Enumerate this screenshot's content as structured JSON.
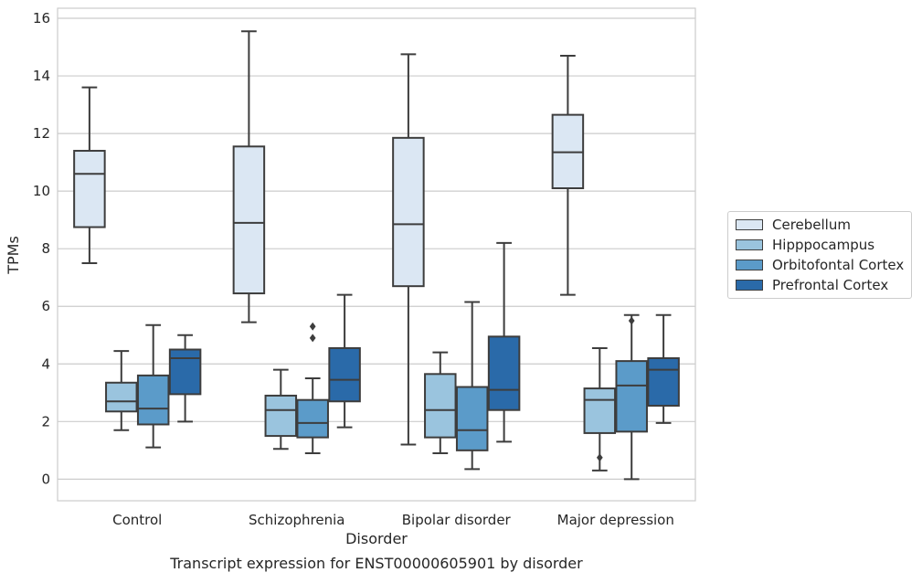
{
  "chart_data": {
    "type": "box",
    "xlabel": "Disorder",
    "ylabel": "TPMs",
    "caption": "Transcript expression for ENST00000605901 by disorder",
    "ylim": [
      -0.75,
      16.35
    ],
    "yticks": [
      0,
      2,
      4,
      6,
      8,
      10,
      12,
      14,
      16
    ],
    "grid": "horizontal",
    "legend_position": "outside-right",
    "categories": [
      "Control",
      "Schizophrenia",
      "Bipolar disorder",
      "Major depression"
    ],
    "series": [
      {
        "name": "Cerebellum",
        "color": "#dbe7f3",
        "boxes": [
          {
            "whislo": 7.5,
            "q1": 8.75,
            "med": 10.6,
            "q3": 11.4,
            "whishi": 13.6,
            "fliers": []
          },
          {
            "whislo": 5.45,
            "q1": 6.45,
            "med": 8.9,
            "q3": 11.55,
            "whishi": 15.55,
            "fliers": []
          },
          {
            "whislo": 1.2,
            "q1": 6.7,
            "med": 8.85,
            "q3": 11.85,
            "whishi": 14.75,
            "fliers": []
          },
          {
            "whislo": 6.4,
            "q1": 10.1,
            "med": 11.35,
            "q3": 12.65,
            "whishi": 14.7,
            "fliers": []
          }
        ]
      },
      {
        "name": "Hipppocampus",
        "color": "#9ac4de",
        "boxes": [
          {
            "whislo": 1.7,
            "q1": 2.35,
            "med": 2.7,
            "q3": 3.35,
            "whishi": 4.45,
            "fliers": []
          },
          {
            "whislo": 1.05,
            "q1": 1.5,
            "med": 2.4,
            "q3": 2.9,
            "whishi": 3.8,
            "fliers": []
          },
          {
            "whislo": 0.9,
            "q1": 1.45,
            "med": 2.4,
            "q3": 3.65,
            "whishi": 4.4,
            "fliers": []
          },
          {
            "whislo": 0.3,
            "q1": 1.6,
            "med": 2.75,
            "q3": 3.15,
            "whishi": 4.55,
            "fliers": [
              0.75
            ]
          }
        ]
      },
      {
        "name": "Orbitofontal Cortex",
        "color": "#5b9bc9",
        "boxes": [
          {
            "whislo": 1.1,
            "q1": 1.9,
            "med": 2.45,
            "q3": 3.6,
            "whishi": 5.35,
            "fliers": []
          },
          {
            "whislo": 0.9,
            "q1": 1.45,
            "med": 1.95,
            "q3": 2.75,
            "whishi": 3.5,
            "fliers": [
              4.9,
              5.3
            ]
          },
          {
            "whislo": 0.35,
            "q1": 1.0,
            "med": 1.7,
            "q3": 3.2,
            "whishi": 6.15,
            "fliers": []
          },
          {
            "whislo": 0.0,
            "q1": 1.65,
            "med": 3.25,
            "q3": 4.1,
            "whishi": 5.7,
            "fliers": [
              5.5
            ]
          }
        ]
      },
      {
        "name": "Prefrontal Cortex",
        "color": "#2a6aa9",
        "boxes": [
          {
            "whislo": 2.0,
            "q1": 2.95,
            "med": 4.2,
            "q3": 4.5,
            "whishi": 5.0,
            "fliers": []
          },
          {
            "whislo": 1.8,
            "q1": 2.7,
            "med": 3.45,
            "q3": 4.55,
            "whishi": 6.4,
            "fliers": []
          },
          {
            "whislo": 1.3,
            "q1": 2.4,
            "med": 3.1,
            "q3": 4.95,
            "whishi": 8.2,
            "fliers": []
          },
          {
            "whislo": 1.95,
            "q1": 2.55,
            "med": 3.8,
            "q3": 4.2,
            "whishi": 5.7,
            "fliers": []
          }
        ]
      }
    ]
  }
}
